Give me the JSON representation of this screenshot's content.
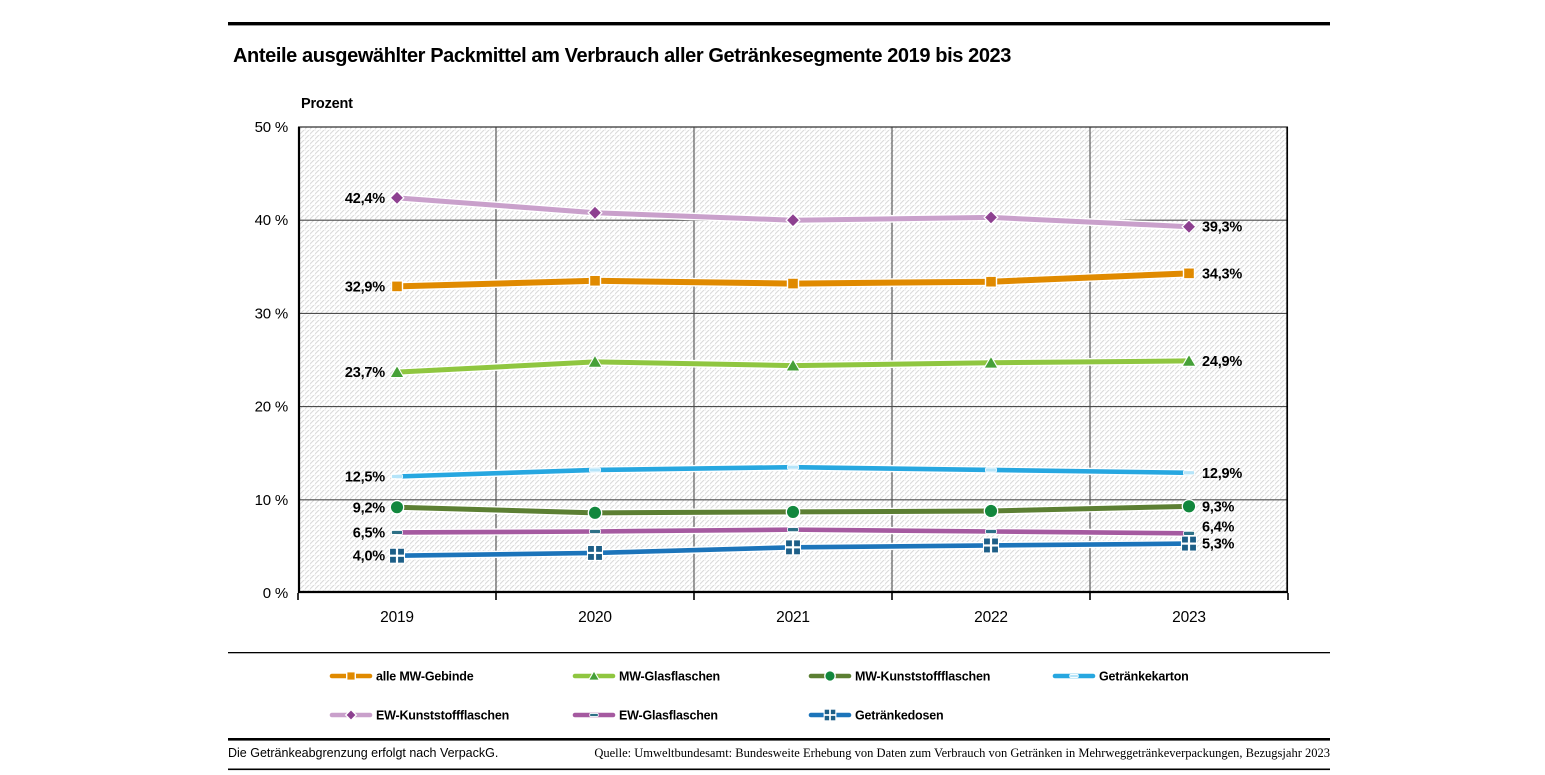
{
  "title": "Anteile ausgewählter Packmittel am Verbrauch aller Getränkesegmente 2019 bis 2023",
  "axis_unit_label": "Prozent",
  "chart_data": {
    "type": "line",
    "categories": [
      "2019",
      "2020",
      "2021",
      "2022",
      "2023"
    ],
    "ylim": [
      0,
      50
    ],
    "ytick_step": 10,
    "ytick_labels": [
      "0 %",
      "10 %",
      "20 %",
      "30 %",
      "40 %",
      "50 %"
    ],
    "grid": true,
    "legend_position": "bottom",
    "series": [
      {
        "name": "EW-Kunststoffflaschen",
        "values": [
          42.4,
          40.8,
          40.0,
          40.3,
          39.3
        ],
        "first_label": "42,4%",
        "last_label": "39,3%",
        "color": "#C9A0CB",
        "marker": "diamond",
        "marker_color": "#8D4090",
        "width": 5
      },
      {
        "name": "alle MW-Gebinde",
        "values": [
          32.9,
          33.5,
          33.2,
          33.4,
          34.3
        ],
        "first_label": "32,9%",
        "last_label": "34,3%",
        "color": "#E08A00",
        "marker": "square",
        "marker_color": "#E08A00",
        "width": 6
      },
      {
        "name": "MW-Glasflaschen",
        "values": [
          23.7,
          24.8,
          24.4,
          24.7,
          24.9
        ],
        "first_label": "23,7%",
        "last_label": "24,9%",
        "color": "#8FC640",
        "marker": "triangle",
        "marker_color": "#46A038",
        "width": 5
      },
      {
        "name": "Getränkekarton",
        "values": [
          12.5,
          13.2,
          13.5,
          13.2,
          12.9
        ],
        "first_label": "12,5%",
        "last_label": "12,9%",
        "color": "#27A7E0",
        "marker": "dash",
        "marker_color": "#B5E4F9",
        "width": 4.6
      },
      {
        "name": "MW-Kunststoffflaschen",
        "values": [
          9.2,
          8.6,
          8.7,
          8.8,
          9.3
        ],
        "first_label": "9,2%",
        "last_label": "9,3%",
        "color": "#5C7F33",
        "marker": "circle",
        "marker_color": "#12873D",
        "width": 5
      },
      {
        "name": "EW-Glasflaschen",
        "values": [
          6.5,
          6.6,
          6.8,
          6.6,
          6.4
        ],
        "first_label": "6,5%",
        "last_label": "6,4%",
        "color": "#A55AA0",
        "marker": "dash",
        "marker_color": "#2D7086",
        "width": 4.6
      },
      {
        "name": "Getränkedosen",
        "values": [
          4.0,
          4.3,
          4.9,
          5.1,
          5.3
        ],
        "first_label": "4,0%",
        "last_label": "5,3%",
        "color": "#1C74BA",
        "marker": "cross-square",
        "marker_color": "#1D5E87",
        "width": 4.6
      }
    ]
  },
  "legend": {
    "rows": [
      [
        "alle MW-Gebinde",
        "MW-Glasflaschen",
        "MW-Kunststoffflaschen",
        "Getränkekarton"
      ],
      [
        "EW-Kunststoffflaschen",
        "EW-Glasflaschen",
        "Getränkedosen"
      ]
    ]
  },
  "footnote_left": "Die Getränkeabgrenzung erfolgt nach VerpackG.",
  "source": "Quelle: Umweltbundesamt: Bundesweite Erhebung von Daten zum Verbrauch von Getränken in Mehrweggetränkeverpackungen, Bezugsjahr 2023"
}
